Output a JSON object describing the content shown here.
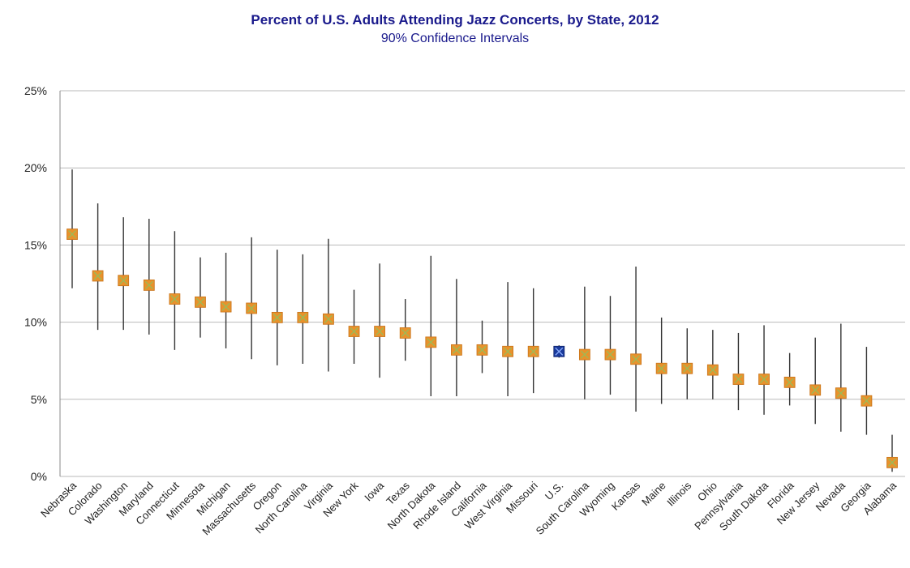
{
  "chart_data": {
    "type": "scatter",
    "title": "Percent of U.S. Adults Attending Jazz Concerts, by State, 2012",
    "subtitle": "90% Confidence Intervals",
    "xlabel": "",
    "ylabel": "",
    "ylim": [
      0,
      25
    ],
    "yticks": [
      0,
      5,
      10,
      15,
      20,
      25
    ],
    "ytick_labels": [
      "0%",
      "5%",
      "10%",
      "15%",
      "20%",
      "25%"
    ],
    "grid": true,
    "legend": "none",
    "colors": {
      "state": "#e8922c",
      "us": "#1a3a9c",
      "cross": "#9bbb59",
      "whisker": "#333333"
    },
    "points": [
      {
        "category": "Nebraska",
        "value": 15.7,
        "low": 12.2,
        "high": 19.9
      },
      {
        "category": "Colorado",
        "value": 13.0,
        "low": 9.5,
        "high": 17.7
      },
      {
        "category": "Washington",
        "value": 12.7,
        "low": 9.5,
        "high": 16.8
      },
      {
        "category": "Maryland",
        "value": 12.4,
        "low": 9.2,
        "high": 16.7
      },
      {
        "category": "Connecticut",
        "value": 11.5,
        "low": 8.2,
        "high": 15.9
      },
      {
        "category": "Minnesota",
        "value": 11.3,
        "low": 9.0,
        "high": 14.2
      },
      {
        "category": "Michigan",
        "value": 11.0,
        "low": 8.3,
        "high": 14.5
      },
      {
        "category": "Massachusetts",
        "value": 10.9,
        "low": 7.6,
        "high": 15.5
      },
      {
        "category": "Oregon",
        "value": 10.3,
        "low": 7.2,
        "high": 14.7
      },
      {
        "category": "North Carolina",
        "value": 10.3,
        "low": 7.3,
        "high": 14.4
      },
      {
        "category": "Virginia",
        "value": 10.2,
        "low": 6.8,
        "high": 15.4
      },
      {
        "category": "New York",
        "value": 9.4,
        "low": 7.3,
        "high": 12.1
      },
      {
        "category": "Iowa",
        "value": 9.4,
        "low": 6.4,
        "high": 13.8
      },
      {
        "category": "Texas",
        "value": 9.3,
        "low": 7.5,
        "high": 11.5
      },
      {
        "category": "North Dakota",
        "value": 8.7,
        "low": 5.2,
        "high": 14.3
      },
      {
        "category": "Rhode Island",
        "value": 8.2,
        "low": 5.2,
        "high": 12.8
      },
      {
        "category": "California",
        "value": 8.2,
        "low": 6.7,
        "high": 10.1
      },
      {
        "category": "West Virginia",
        "value": 8.1,
        "low": 5.2,
        "high": 12.6
      },
      {
        "category": "Missouri",
        "value": 8.1,
        "low": 5.4,
        "high": 12.2
      },
      {
        "category": "U.S.",
        "value": 8.1,
        "low": 7.7,
        "high": 8.5,
        "highlight": true
      },
      {
        "category": "South Carolina",
        "value": 7.9,
        "low": 5.0,
        "high": 12.3
      },
      {
        "category": "Wyoming",
        "value": 7.9,
        "low": 5.3,
        "high": 11.7
      },
      {
        "category": "Kansas",
        "value": 7.6,
        "low": 4.2,
        "high": 13.6
      },
      {
        "category": "Maine",
        "value": 7.0,
        "low": 4.7,
        "high": 10.3
      },
      {
        "category": "Illinois",
        "value": 7.0,
        "low": 5.0,
        "high": 9.6
      },
      {
        "category": "Ohio",
        "value": 6.9,
        "low": 5.0,
        "high": 9.5
      },
      {
        "category": "Pennsylvania",
        "value": 6.3,
        "low": 4.3,
        "high": 9.3
      },
      {
        "category": "South Dakota",
        "value": 6.3,
        "low": 4.0,
        "high": 9.8
      },
      {
        "category": "Florida",
        "value": 6.1,
        "low": 4.6,
        "high": 8.0
      },
      {
        "category": "New Jersey",
        "value": 5.6,
        "low": 3.4,
        "high": 9.0
      },
      {
        "category": "Nevada",
        "value": 5.4,
        "low": 2.9,
        "high": 9.9
      },
      {
        "category": "Georgia",
        "value": 4.9,
        "low": 2.7,
        "high": 8.4
      },
      {
        "category": "Alabama",
        "value": 0.9,
        "low": 0.3,
        "high": 2.7
      }
    ]
  }
}
